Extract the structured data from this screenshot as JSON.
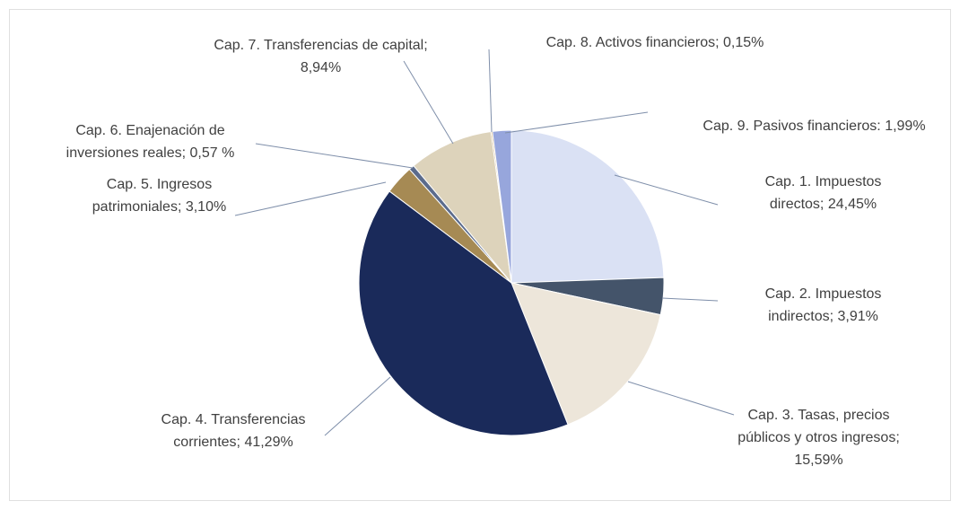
{
  "chart_data": {
    "type": "pie",
    "values": [
      24.45,
      3.91,
      15.59,
      41.29,
      3.1,
      0.57,
      8.94,
      0.15,
      1.99
    ],
    "value_labels": [
      "Cap. 1. Impuestos directos; 24,45%",
      "Cap. 2. Impuestos indirectos; 3,91%",
      "Cap. 3. Tasas, precios públicos y otros ingresos; 15,59%",
      "Cap. 4. Transferencias corrientes; 41,29%",
      "Cap. 5. Ingresos patrimoniales; 3,10%",
      "Cap. 6. Enajenación de inversiones reales; 0,57 %",
      "Cap. 7. Transferencias de capital; 8,94%",
      "Cap. 8. Activos financieros; 0,15%",
      "Cap. 9. Pasivos financieros: 1,99%"
    ],
    "colors": [
      "#dae1f4",
      "#44546a",
      "#ede6da",
      "#1a2a5a",
      "#a68a54",
      "#5b6b8c",
      "#ddd3bb",
      "#c9a56b",
      "#97a6dc"
    ]
  }
}
